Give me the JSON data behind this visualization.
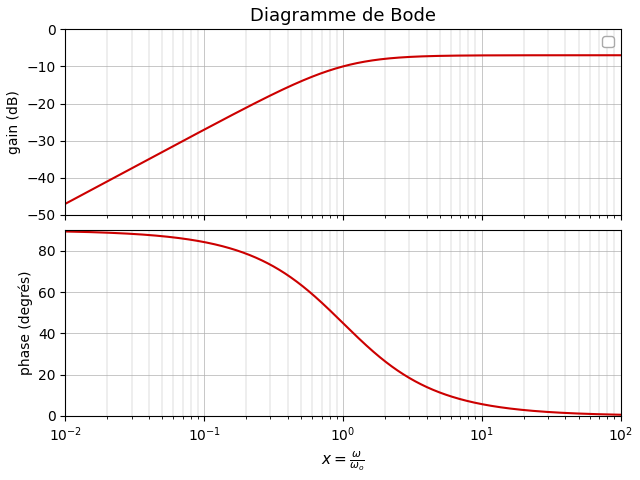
{
  "title": "Diagramme de Bode",
  "xlabel_latex": "x = \\frac{\\omega}{\\omega_o}",
  "ylabel_gain": "gain (dB)",
  "ylabel_phase": "phase (degrés)",
  "x_min": 0.01,
  "x_max": 100,
  "gain_ylim": [
    -50,
    0
  ],
  "gain_yticks": [
    0,
    -10,
    -20,
    -30,
    -40,
    -50
  ],
  "phase_ylim": [
    0,
    90
  ],
  "phase_yticks": [
    0,
    20,
    40,
    60,
    80
  ],
  "line_color": "#cc0000",
  "line_width": 1.5,
  "grid_color": "#b0b0b0",
  "background_color": "#ffffff",
  "title_fontsize": 13,
  "K": 0.447,
  "figsize": [
    6.4,
    4.8
  ],
  "dpi": 100
}
